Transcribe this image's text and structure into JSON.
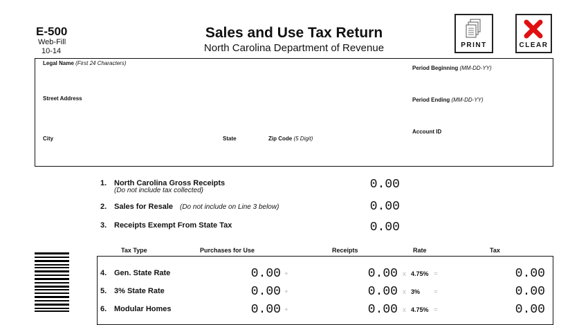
{
  "header": {
    "form_id": "E-500",
    "edition": "Web-Fill",
    "version": "10-14",
    "title": "Sales and Use Tax Return",
    "subtitle": "North Carolina Department of Revenue"
  },
  "buttons": {
    "print": "PRINT",
    "clear": "CLEAR"
  },
  "taxpayer": {
    "legal_name": {
      "label": "Legal Name",
      "hint": "(First 24 Characters)"
    },
    "street_address": {
      "label": "Street Address"
    },
    "city": {
      "label": "City"
    },
    "state": {
      "label": "State"
    },
    "zip_code": {
      "label": "Zip Code",
      "hint": "(5 Digit)"
    },
    "period_beginning": {
      "label": "Period Beginning",
      "hint": "(MM-DD-YY)"
    },
    "period_ending": {
      "label": "Period Ending",
      "hint": "(MM-DD-YY)"
    },
    "account_id": {
      "label": "Account ID"
    }
  },
  "lines": [
    {
      "number": "1.",
      "label": "North Carolina Gross Receipts",
      "note": "(Do not include tax collected)",
      "amount": "0.00"
    },
    {
      "number": "2.",
      "label": "Sales for Resale",
      "note": "(Do not include on Line 3 below)",
      "amount": "0.00"
    },
    {
      "number": "3.",
      "label": "Receipts Exempt From State Tax",
      "amount": "0.00"
    }
  ],
  "table": {
    "headers": [
      "Tax Type",
      "Purchases for Use",
      "Receipts",
      "Rate",
      "Tax"
    ],
    "rows": [
      {
        "number": "4.",
        "label": "Gen. State Rate",
        "purchases": "0.00",
        "plus": "+",
        "receipts": "0.00",
        "times": "x",
        "rate": "4.75%",
        "equals": "=",
        "tax": "0.00"
      },
      {
        "number": "5.",
        "label": "3% State Rate",
        "purchases": "0.00",
        "plus": "+",
        "receipts": "0.00",
        "times": "x",
        "rate": "3%",
        "equals": "=",
        "tax": "0.00"
      },
      {
        "number": "6.",
        "label": "Modular Homes",
        "purchases": "0.00",
        "plus": "+",
        "receipts": "0.00",
        "times": "x",
        "rate": "4.75%",
        "equals": "=",
        "tax": "0.00"
      }
    ]
  }
}
